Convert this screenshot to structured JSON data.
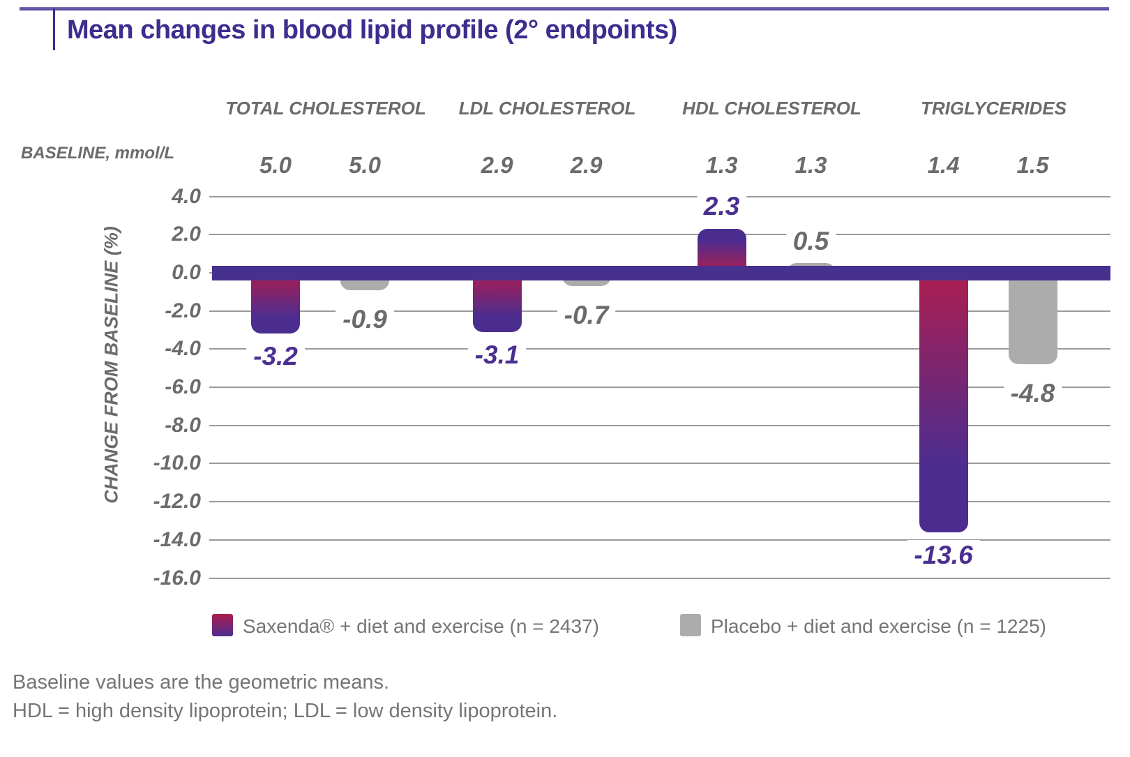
{
  "header": {
    "title": "Mean changes in blood lipid profile (2° endpoints)"
  },
  "colors": {
    "accent_purple": "#3e2c8e",
    "band_purple": "#46318f",
    "saxenda_red": "#ac1e50",
    "saxenda_purple": "#4b2d90",
    "placebo_gray": "#acacac",
    "grid_gray": "#9a9a9a",
    "text_gray": "#6b6b6b",
    "value_label_purple": "#4a2f90",
    "value_label_gray": "#6b6b6b"
  },
  "chart_data": {
    "type": "bar",
    "title": "Mean changes in blood lipid profile (2° endpoints)",
    "xlabel": "",
    "ylabel": "CHANGE FROM BASELINE (%)",
    "baseline_row_label": "BASELINE, mmol/L",
    "categories": [
      "TOTAL CHOLESTEROL",
      "LDL CHOLESTEROL",
      "HDL CHOLESTEROL",
      "TRIGLYCERIDES"
    ],
    "series": [
      {
        "name": "Saxenda® + diet and exercise (n = 2437)",
        "key": "saxenda",
        "values": [
          -3.2,
          -3.1,
          2.3,
          -13.6
        ],
        "baselines_mmol_l": [
          "5.0",
          "2.9",
          "1.3",
          "1.4"
        ]
      },
      {
        "name": "Placebo + diet and exercise (n = 1225)",
        "key": "placebo",
        "values": [
          -0.9,
          -0.7,
          0.5,
          -4.8
        ],
        "baselines_mmol_l": [
          "5.0",
          "2.9",
          "1.3",
          "1.5"
        ]
      }
    ],
    "ylim": [
      -16.0,
      4.0
    ],
    "ytick_interval": 2.0,
    "yticks": [
      "4.0",
      "2.0",
      "0.0",
      "-2.0",
      "-4.0",
      "-6.0",
      "-8.0",
      "-10.0",
      "-12.0",
      "-14.0",
      "-16.0"
    ],
    "grid": true,
    "legend_position": "bottom"
  },
  "footnotes": [
    "Baseline values are the geometric means.",
    "HDL = high density lipoprotein; LDL = low density lipoprotein."
  ]
}
